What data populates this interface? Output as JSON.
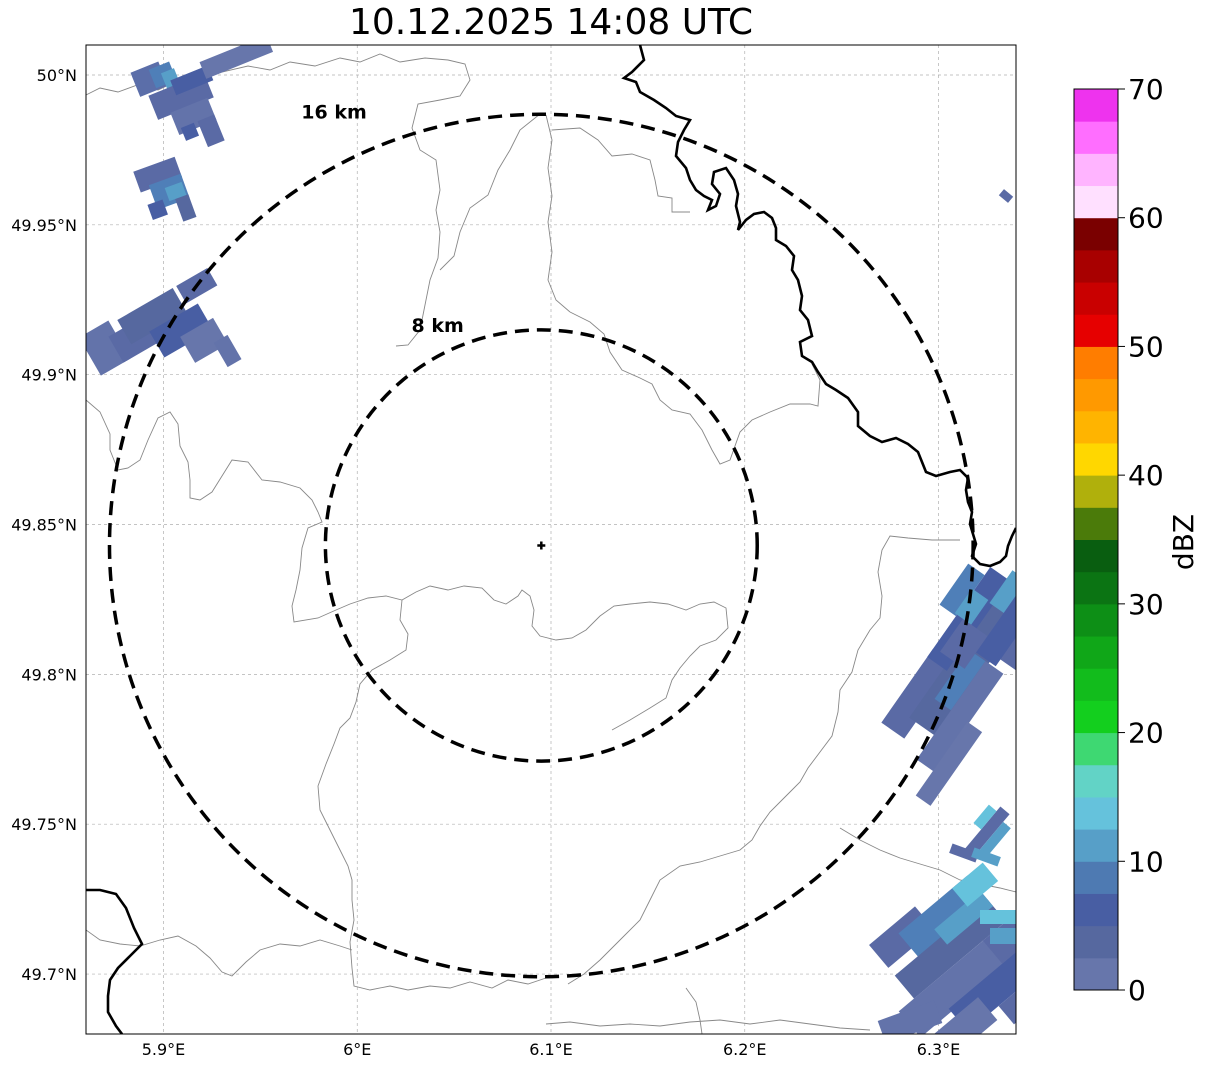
{
  "title": "10.12.2025 14:08 UTC",
  "map": {
    "lon_range": [
      5.86,
      6.34
    ],
    "lat_range": [
      49.68,
      50.01
    ],
    "lon_ticks": [
      {
        "value": 5.9,
        "label": "5.9°E"
      },
      {
        "value": 6.0,
        "label": "6°E"
      },
      {
        "value": 6.1,
        "label": "6.1°E"
      },
      {
        "value": 6.2,
        "label": "6.2°E"
      },
      {
        "value": 6.3,
        "label": "6.3°E"
      }
    ],
    "lat_ticks": [
      {
        "value": 50.0,
        "label": "50°N"
      },
      {
        "value": 49.95,
        "label": "49.95°N"
      },
      {
        "value": 49.9,
        "label": "49.9°N"
      },
      {
        "value": 49.85,
        "label": "49.85°N"
      },
      {
        "value": 49.8,
        "label": "49.8°N"
      },
      {
        "value": 49.75,
        "label": "49.75°N"
      },
      {
        "value": 49.7,
        "label": "49.7°N"
      }
    ],
    "center": {
      "lon": 6.095,
      "lat": 49.843
    },
    "range_rings": [
      {
        "label": "8 km",
        "km": 8
      },
      {
        "label": "16 km",
        "km": 16
      }
    ]
  },
  "colorbar": {
    "label": "dBZ",
    "min": 0,
    "max": 70,
    "ticks": [
      "0",
      "10",
      "20",
      "30",
      "40",
      "50",
      "60",
      "70"
    ],
    "colors": [
      "#6776ab",
      "#56689f",
      "#485ea3",
      "#4e7ab2",
      "#579fc8",
      "#65c2dc",
      "#62d3c6",
      "#3ed872",
      "#13cf1e",
      "#12bc1c",
      "#10a718",
      "#0d8f16",
      "#0b7413",
      "#095e10",
      "#4b7b0a",
      "#b0b00c",
      "#ffd700",
      "#ffb400",
      "#ff9900",
      "#ff7d00",
      "#e60000",
      "#c90000",
      "#a80000",
      "#7a0000",
      "#ffe0ff",
      "#ffb4ff",
      "#ff6eff",
      "#ee33ee"
    ]
  }
}
